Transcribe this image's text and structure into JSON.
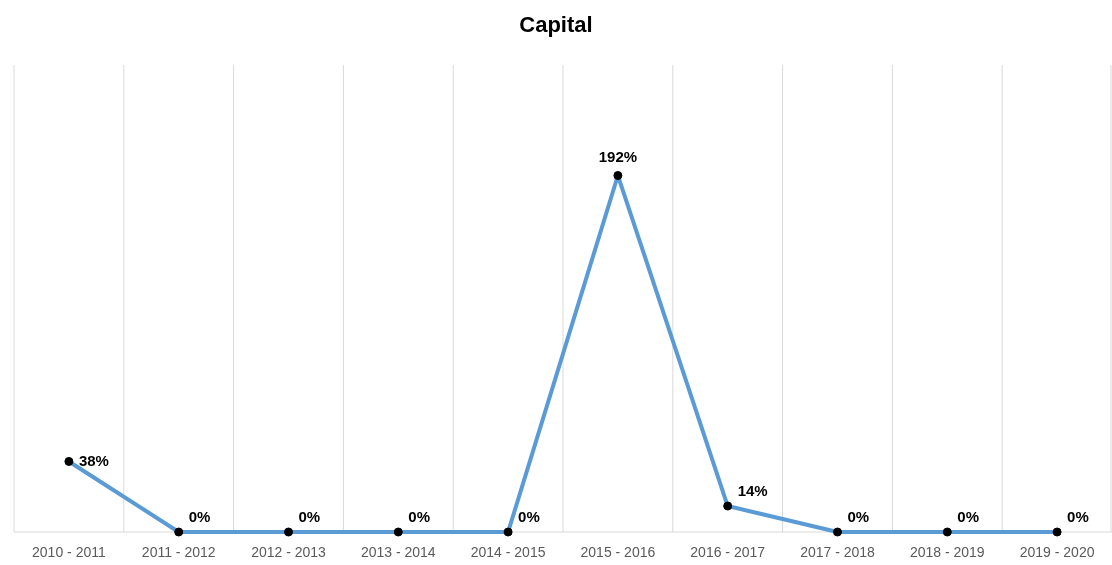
{
  "chart_data": {
    "type": "line",
    "title": "Capital",
    "categories": [
      "2010 - 2011",
      "2011 - 2012",
      "2012 - 2013",
      "2013 - 2014",
      "2014 - 2015",
      "2015 - 2016",
      "2016 - 2017",
      "2017 - 2018",
      "2018 - 2019",
      "2019 - 2020"
    ],
    "series": [
      {
        "color": "#5b9bd5",
        "values": [
          38,
          0,
          0,
          0,
          0,
          192,
          14,
          0,
          0,
          0
        ],
        "value_labels": [
          "38%",
          "0%",
          "0%",
          "0%",
          "0%",
          "192%",
          "14%",
          "0%",
          "0%",
          "0%"
        ]
      }
    ],
    "grid": "x",
    "marker": "circle",
    "line_style": "solid"
  }
}
